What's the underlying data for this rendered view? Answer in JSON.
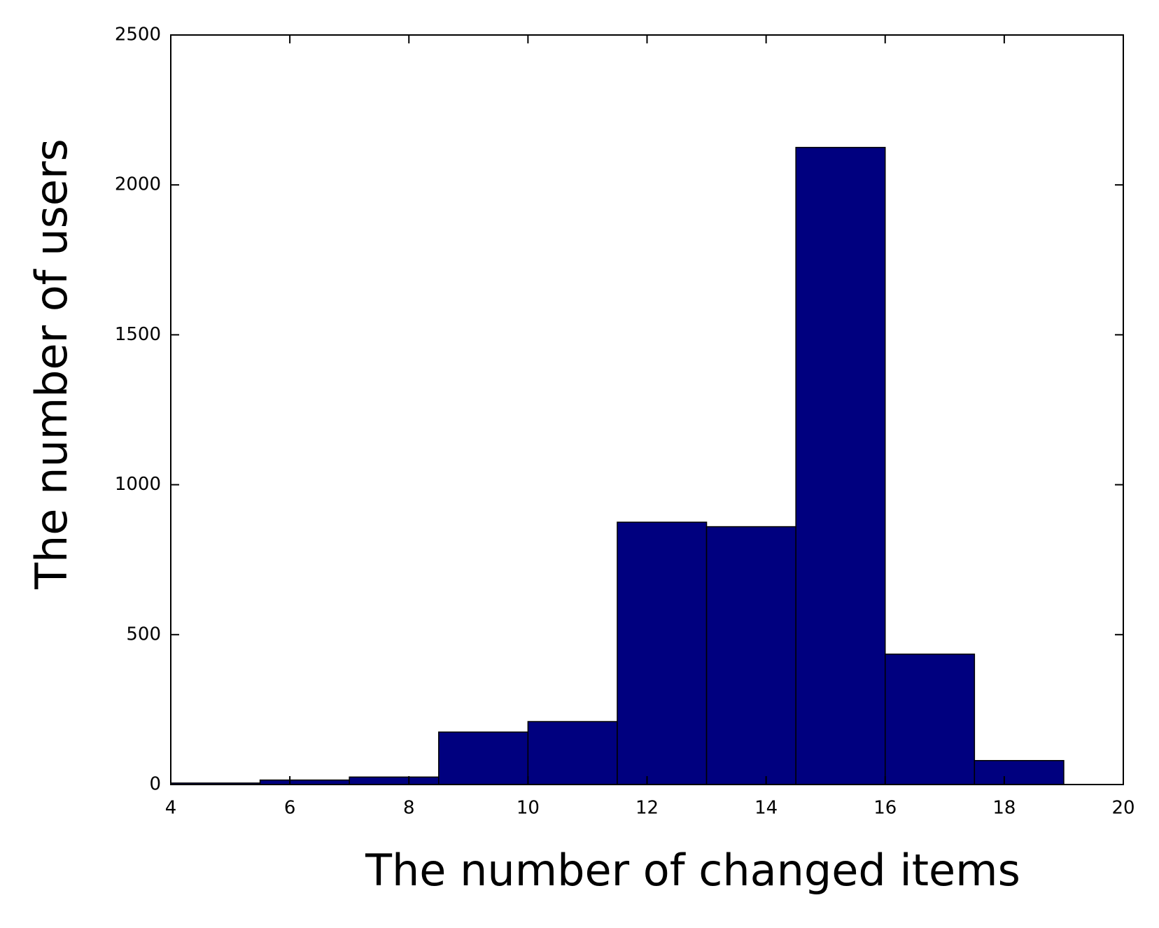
{
  "chart_data": {
    "type": "histogram",
    "x_label": "The number of changed items",
    "y_label": "The number of users",
    "bins": [
      4,
      5.5,
      7,
      8.5,
      10,
      11.5,
      13,
      14.5,
      16,
      17.5,
      19
    ],
    "values": [
      5,
      15,
      25,
      175,
      210,
      875,
      860,
      2125,
      435,
      80
    ],
    "color": "#00007f",
    "xlim": [
      4,
      20
    ],
    "xticks": [
      4,
      6,
      8,
      10,
      12,
      14,
      16,
      18,
      20
    ],
    "ylim": [
      0,
      2500
    ],
    "yticks": [
      0,
      500,
      1000,
      1500,
      2000,
      2500
    ],
    "grid": false
  }
}
